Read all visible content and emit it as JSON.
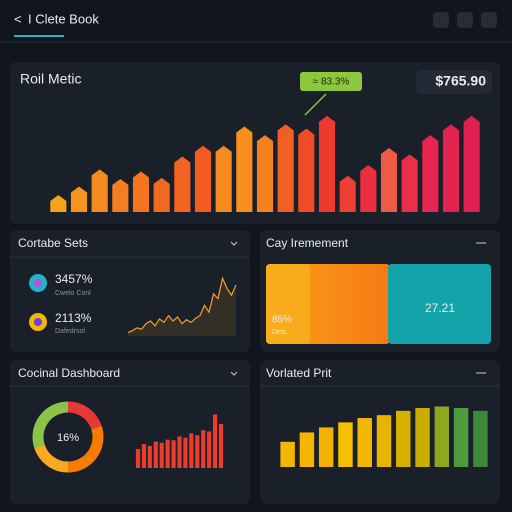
{
  "header": {
    "back": "<",
    "title": "I Clete Book"
  },
  "metric_panel": {
    "title": "Roil Metic",
    "badge": "$765.90",
    "annotation": "≈ 83.3%",
    "chart_data": {
      "type": "bar",
      "ylim": [
        0,
        100
      ],
      "values": [
        14,
        22,
        38,
        29,
        36,
        30,
        50,
        60,
        60,
        78,
        70,
        80,
        76,
        88,
        32,
        42,
        58,
        52,
        70,
        80,
        88
      ],
      "colors": [
        "#f7a21b",
        "#f7941d",
        "#f58a1f",
        "#f57f20",
        "#f47420",
        "#f26a21",
        "#f36321",
        "#f25b22",
        "#f68a1e",
        "#f98f1c",
        "#f58020",
        "#f25f24",
        "#f04a27",
        "#ee3a2e",
        "#ef3e34",
        "#ec2f3f",
        "#ef5a45",
        "#ea2f49",
        "#e8254f",
        "#e2224f",
        "#df2050"
      ]
    }
  },
  "sets_panel": {
    "title": "Cortabe Sets",
    "items": [
      {
        "value": "3457%",
        "label": "Cwelo Conl"
      },
      {
        "value": "2113%",
        "label": "Dafedrsol"
      }
    ],
    "chart_data": {
      "type": "line",
      "ylim": [
        0,
        100
      ],
      "values": [
        5,
        8,
        12,
        10,
        18,
        22,
        15,
        25,
        20,
        30,
        22,
        28,
        18,
        24,
        20,
        26,
        30,
        45,
        35,
        62,
        55,
        85,
        70,
        60,
        75
      ]
    }
  },
  "improvement_panel": {
    "title": "Cay Iremement",
    "left_value": "85%",
    "left_label": "Dets",
    "right_value": "27.21"
  },
  "dashboard_panel": {
    "title": "Cocinal Dashboard",
    "donut_label": "16%",
    "donut": {
      "type": "pie",
      "values": [
        20,
        30,
        20,
        30
      ],
      "colors": [
        "#e53935",
        "#f57c00",
        "#f9a825",
        "#8bc34a"
      ]
    },
    "chart_data": {
      "type": "bar",
      "ylim": [
        0,
        100
      ],
      "color": "#ef3b2c",
      "values": [
        30,
        38,
        35,
        42,
        40,
        45,
        44,
        50,
        48,
        55,
        52,
        60,
        58,
        85,
        70
      ]
    }
  },
  "related_panel": {
    "title": "Vorlated Prit",
    "chart_data": {
      "type": "bar",
      "ylim": [
        0,
        100
      ],
      "values": [
        35,
        48,
        55,
        62,
        68,
        72,
        78,
        82,
        84,
        82,
        78
      ],
      "colors": [
        "#f2b705",
        "#f4b400",
        "#f5b000",
        "#f6c000",
        "#f2b705",
        "#e8b400",
        "#d8b000",
        "#c9ad00",
        "#8fa61f",
        "#4f9a3a",
        "#3f8a3a"
      ]
    }
  }
}
